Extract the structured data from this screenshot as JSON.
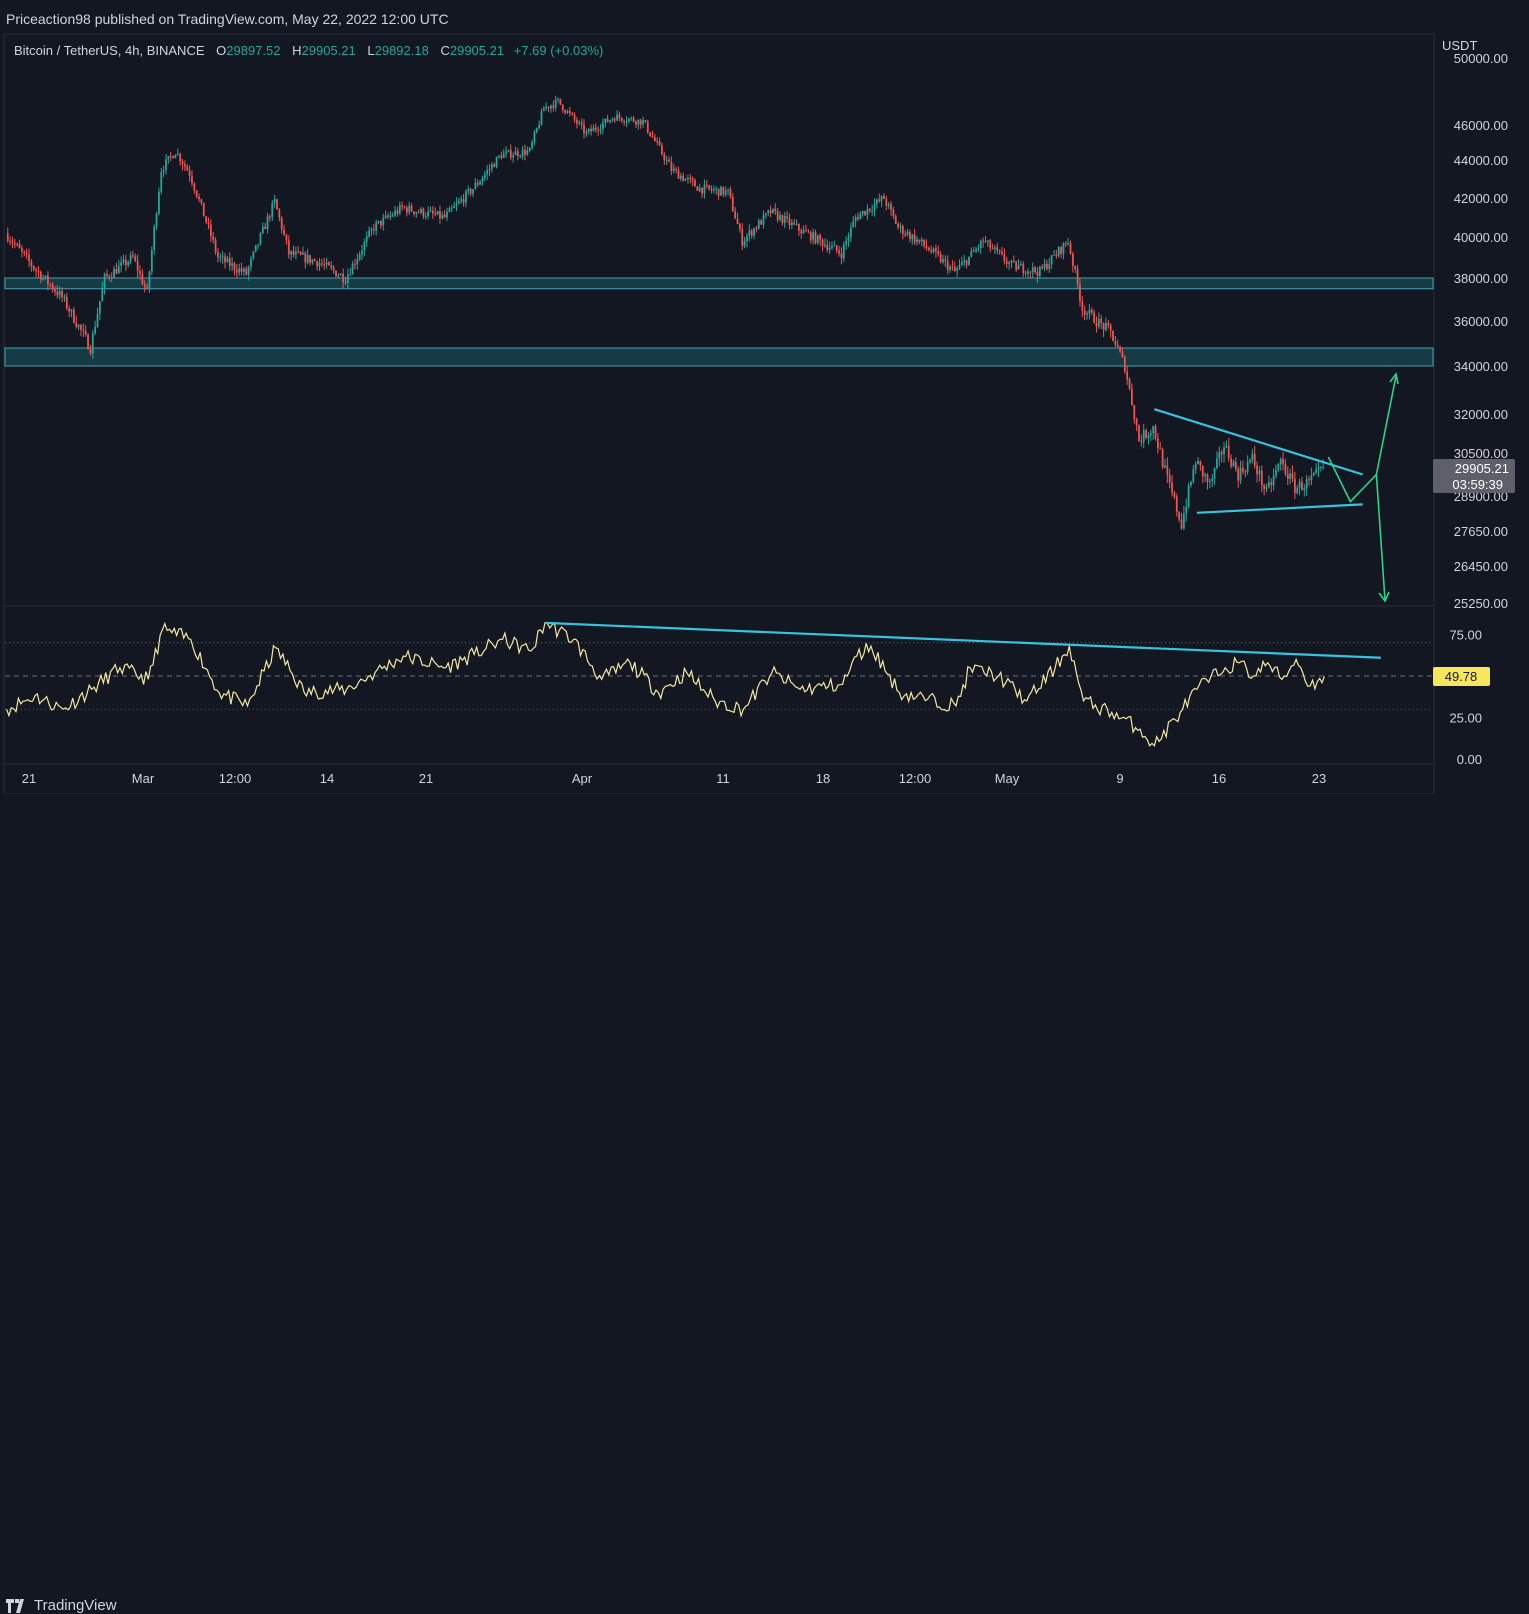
{
  "header": {
    "publisher_line": "Priceaction98 published on TradingView.com, May 22, 2022 12:00 UTC"
  },
  "legend": {
    "symbol": "Bitcoin / TetherUS, 4h, BINANCE",
    "o_label": "O",
    "o_value": "29897.52",
    "h_label": "H",
    "h_value": "29905.21",
    "l_label": "L",
    "l_value": "29892.18",
    "c_label": "C",
    "c_value": "29905.21",
    "change": "+7.69 (+0.03%)"
  },
  "footer": {
    "brand": "TradingView"
  },
  "colors": {
    "background": "#131722",
    "up": "#26a69a",
    "down": "#ef5350",
    "zone_fill": "#1c5a63",
    "trendline": "#36c3e0",
    "projection": "#2bd386",
    "rsi": "#f5e6a3"
  },
  "chart_data": [
    {
      "type": "candlestick",
      "title": "Bitcoin / TetherUS, 4h, BINANCE",
      "currency_label": "USDT",
      "y_ticks": [
        "50000.00",
        "46000.00",
        "44000.00",
        "42000.00",
        "40000.00",
        "38000.00",
        "36000.00",
        "34000.00",
        "32000.00",
        "30500.00",
        "28900.00",
        "27650.00",
        "26450.00",
        "25250.00"
      ],
      "x_ticks": [
        "21",
        "Mar",
        "12:00",
        "14",
        "21",
        "Apr",
        "11",
        "18",
        "12:00",
        "May",
        "9",
        "16",
        "23"
      ],
      "last_price": "29905.21",
      "countdown": "03:59:39",
      "path_keypoints": [
        {
          "x": "Feb 18",
          "y": 40200
        },
        {
          "x": "Feb 20",
          "y": 38500
        },
        {
          "x": "Feb 22",
          "y": 37100
        },
        {
          "x": "Feb 24",
          "y": 34800
        },
        {
          "x": "Feb 25",
          "y": 38000
        },
        {
          "x": "Feb 27",
          "y": 39000
        },
        {
          "x": "Feb 28",
          "y": 37300
        },
        {
          "x": "Mar 1",
          "y": 43500
        },
        {
          "x": "Mar 2",
          "y": 44500
        },
        {
          "x": "Mar 3",
          "y": 43300
        },
        {
          "x": "Mar 5",
          "y": 39000
        },
        {
          "x": "Mar 7",
          "y": 38200
        },
        {
          "x": "Mar 9",
          "y": 41800
        },
        {
          "x": "Mar 10",
          "y": 39200
        },
        {
          "x": "Mar 12",
          "y": 38800
        },
        {
          "x": "Mar 14",
          "y": 38000
        },
        {
          "x": "Mar 16",
          "y": 40500
        },
        {
          "x": "Mar 18",
          "y": 41500
        },
        {
          "x": "Mar 21",
          "y": 41000
        },
        {
          "x": "Mar 23",
          "y": 42500
        },
        {
          "x": "Mar 25",
          "y": 44300
        },
        {
          "x": "Mar 27",
          "y": 44500
        },
        {
          "x": "Mar 28",
          "y": 47000
        },
        {
          "x": "Mar 29",
          "y": 47400
        },
        {
          "x": "Mar 31",
          "y": 45500
        },
        {
          "x": "Apr 2",
          "y": 46500
        },
        {
          "x": "Apr 4",
          "y": 46200
        },
        {
          "x": "Apr 6",
          "y": 43500
        },
        {
          "x": "Apr 8",
          "y": 42500
        },
        {
          "x": "Apr 10",
          "y": 42300
        },
        {
          "x": "Apr 11",
          "y": 39800
        },
        {
          "x": "Apr 13",
          "y": 41300
        },
        {
          "x": "Apr 15",
          "y": 40400
        },
        {
          "x": "Apr 18",
          "y": 39200
        },
        {
          "x": "Apr 19",
          "y": 41000
        },
        {
          "x": "Apr 21",
          "y": 42000
        },
        {
          "x": "Apr 22",
          "y": 40500
        },
        {
          "x": "Apr 24",
          "y": 39500
        },
        {
          "x": "Apr 26",
          "y": 38300
        },
        {
          "x": "Apr 27",
          "y": 39000
        },
        {
          "x": "Apr 28",
          "y": 39800
        },
        {
          "x": "Apr 30",
          "y": 38600
        },
        {
          "x": "May 2",
          "y": 38300
        },
        {
          "x": "May 4",
          "y": 39800
        },
        {
          "x": "May 5",
          "y": 36600
        },
        {
          "x": "May 6",
          "y": 36000
        },
        {
          "x": "May 7",
          "y": 35500
        },
        {
          "x": "May 8",
          "y": 34000
        },
        {
          "x": "May 9",
          "y": 31000
        },
        {
          "x": "May 10",
          "y": 31500
        },
        {
          "x": "May 11",
          "y": 29500
        },
        {
          "x": "May 12",
          "y": 27900
        },
        {
          "x": "May 13",
          "y": 30200
        },
        {
          "x": "May 14",
          "y": 29300
        },
        {
          "x": "May 15",
          "y": 30800
        },
        {
          "x": "May 16",
          "y": 29700
        },
        {
          "x": "May 17",
          "y": 30300
        },
        {
          "x": "May 18",
          "y": 29000
        },
        {
          "x": "May 19",
          "y": 30200
        },
        {
          "x": "May 20",
          "y": 29200
        },
        {
          "x": "May 21",
          "y": 29400
        },
        {
          "x": "May 22",
          "y": 29905.21
        }
      ],
      "zones": [
        {
          "low": 37500,
          "high": 38000
        },
        {
          "low": 34000,
          "high": 34800
        }
      ],
      "triangle": {
        "upper": [
          {
            "x": "May 10",
            "y": 32200
          },
          {
            "x": "May 24",
            "y": 29700
          }
        ],
        "lower": [
          {
            "x": "May 13",
            "y": 28300
          },
          {
            "x": "May 24",
            "y": 28600
          }
        ]
      }
    },
    {
      "type": "line",
      "title": "RSI",
      "y_ticks": [
        "75.00",
        "25.00",
        "0.00"
      ],
      "levels": [
        70,
        50,
        30
      ],
      "current_value": "49.78",
      "path_keypoints": [
        {
          "x": "Feb 18",
          "y": 30
        },
        {
          "x": "Feb 20",
          "y": 38
        },
        {
          "x": "Feb 22",
          "y": 30
        },
        {
          "x": "Feb 24",
          "y": 42
        },
        {
          "x": "Feb 26",
          "y": 55
        },
        {
          "x": "Feb 28",
          "y": 48
        },
        {
          "x": "Mar 1",
          "y": 78
        },
        {
          "x": "Mar 3",
          "y": 72
        },
        {
          "x": "Mar 5",
          "y": 40
        },
        {
          "x": "Mar 7",
          "y": 32
        },
        {
          "x": "Mar 9",
          "y": 67
        },
        {
          "x": "Mar 11",
          "y": 40
        },
        {
          "x": "Mar 14",
          "y": 42
        },
        {
          "x": "Mar 16",
          "y": 52
        },
        {
          "x": "Mar 18",
          "y": 62
        },
        {
          "x": "Mar 21",
          "y": 55
        },
        {
          "x": "Mar 23",
          "y": 63
        },
        {
          "x": "Mar 25",
          "y": 72
        },
        {
          "x": "Mar 27",
          "y": 65
        },
        {
          "x": "Mar 28",
          "y": 82
        },
        {
          "x": "Mar 30",
          "y": 72
        },
        {
          "x": "Apr 1",
          "y": 48
        },
        {
          "x": "Apr 3",
          "y": 58
        },
        {
          "x": "Apr 5",
          "y": 40
        },
        {
          "x": "Apr 7",
          "y": 52
        },
        {
          "x": "Apr 9",
          "y": 35
        },
        {
          "x": "Apr 11",
          "y": 30
        },
        {
          "x": "Apr 13",
          "y": 52
        },
        {
          "x": "Apr 15",
          "y": 42
        },
        {
          "x": "Apr 18",
          "y": 45
        },
        {
          "x": "Apr 19",
          "y": 62
        },
        {
          "x": "Apr 20",
          "y": 68
        },
        {
          "x": "Apr 22",
          "y": 40
        },
        {
          "x": "Apr 24",
          "y": 36
        },
        {
          "x": "Apr 26",
          "y": 32
        },
        {
          "x": "Apr 27",
          "y": 55
        },
        {
          "x": "Apr 29",
          "y": 50
        },
        {
          "x": "May 1",
          "y": 35
        },
        {
          "x": "May 3",
          "y": 55
        },
        {
          "x": "May 4",
          "y": 68
        },
        {
          "x": "May 5",
          "y": 35
        },
        {
          "x": "May 7",
          "y": 28
        },
        {
          "x": "May 9",
          "y": 18
        },
        {
          "x": "May 10",
          "y": 8
        },
        {
          "x": "May 12",
          "y": 30
        },
        {
          "x": "May 13",
          "y": 42
        },
        {
          "x": "May 15",
          "y": 55
        },
        {
          "x": "May 16",
          "y": 58
        },
        {
          "x": "May 17",
          "y": 50
        },
        {
          "x": "May 18",
          "y": 58
        },
        {
          "x": "May 19",
          "y": 48
        },
        {
          "x": "May 20",
          "y": 60
        },
        {
          "x": "May 21",
          "y": 44
        },
        {
          "x": "May 22",
          "y": 49.78
        }
      ],
      "trendline": [
        {
          "x": "Mar 28",
          "y": 82
        },
        {
          "x": "May 25",
          "y": 61
        }
      ]
    }
  ]
}
